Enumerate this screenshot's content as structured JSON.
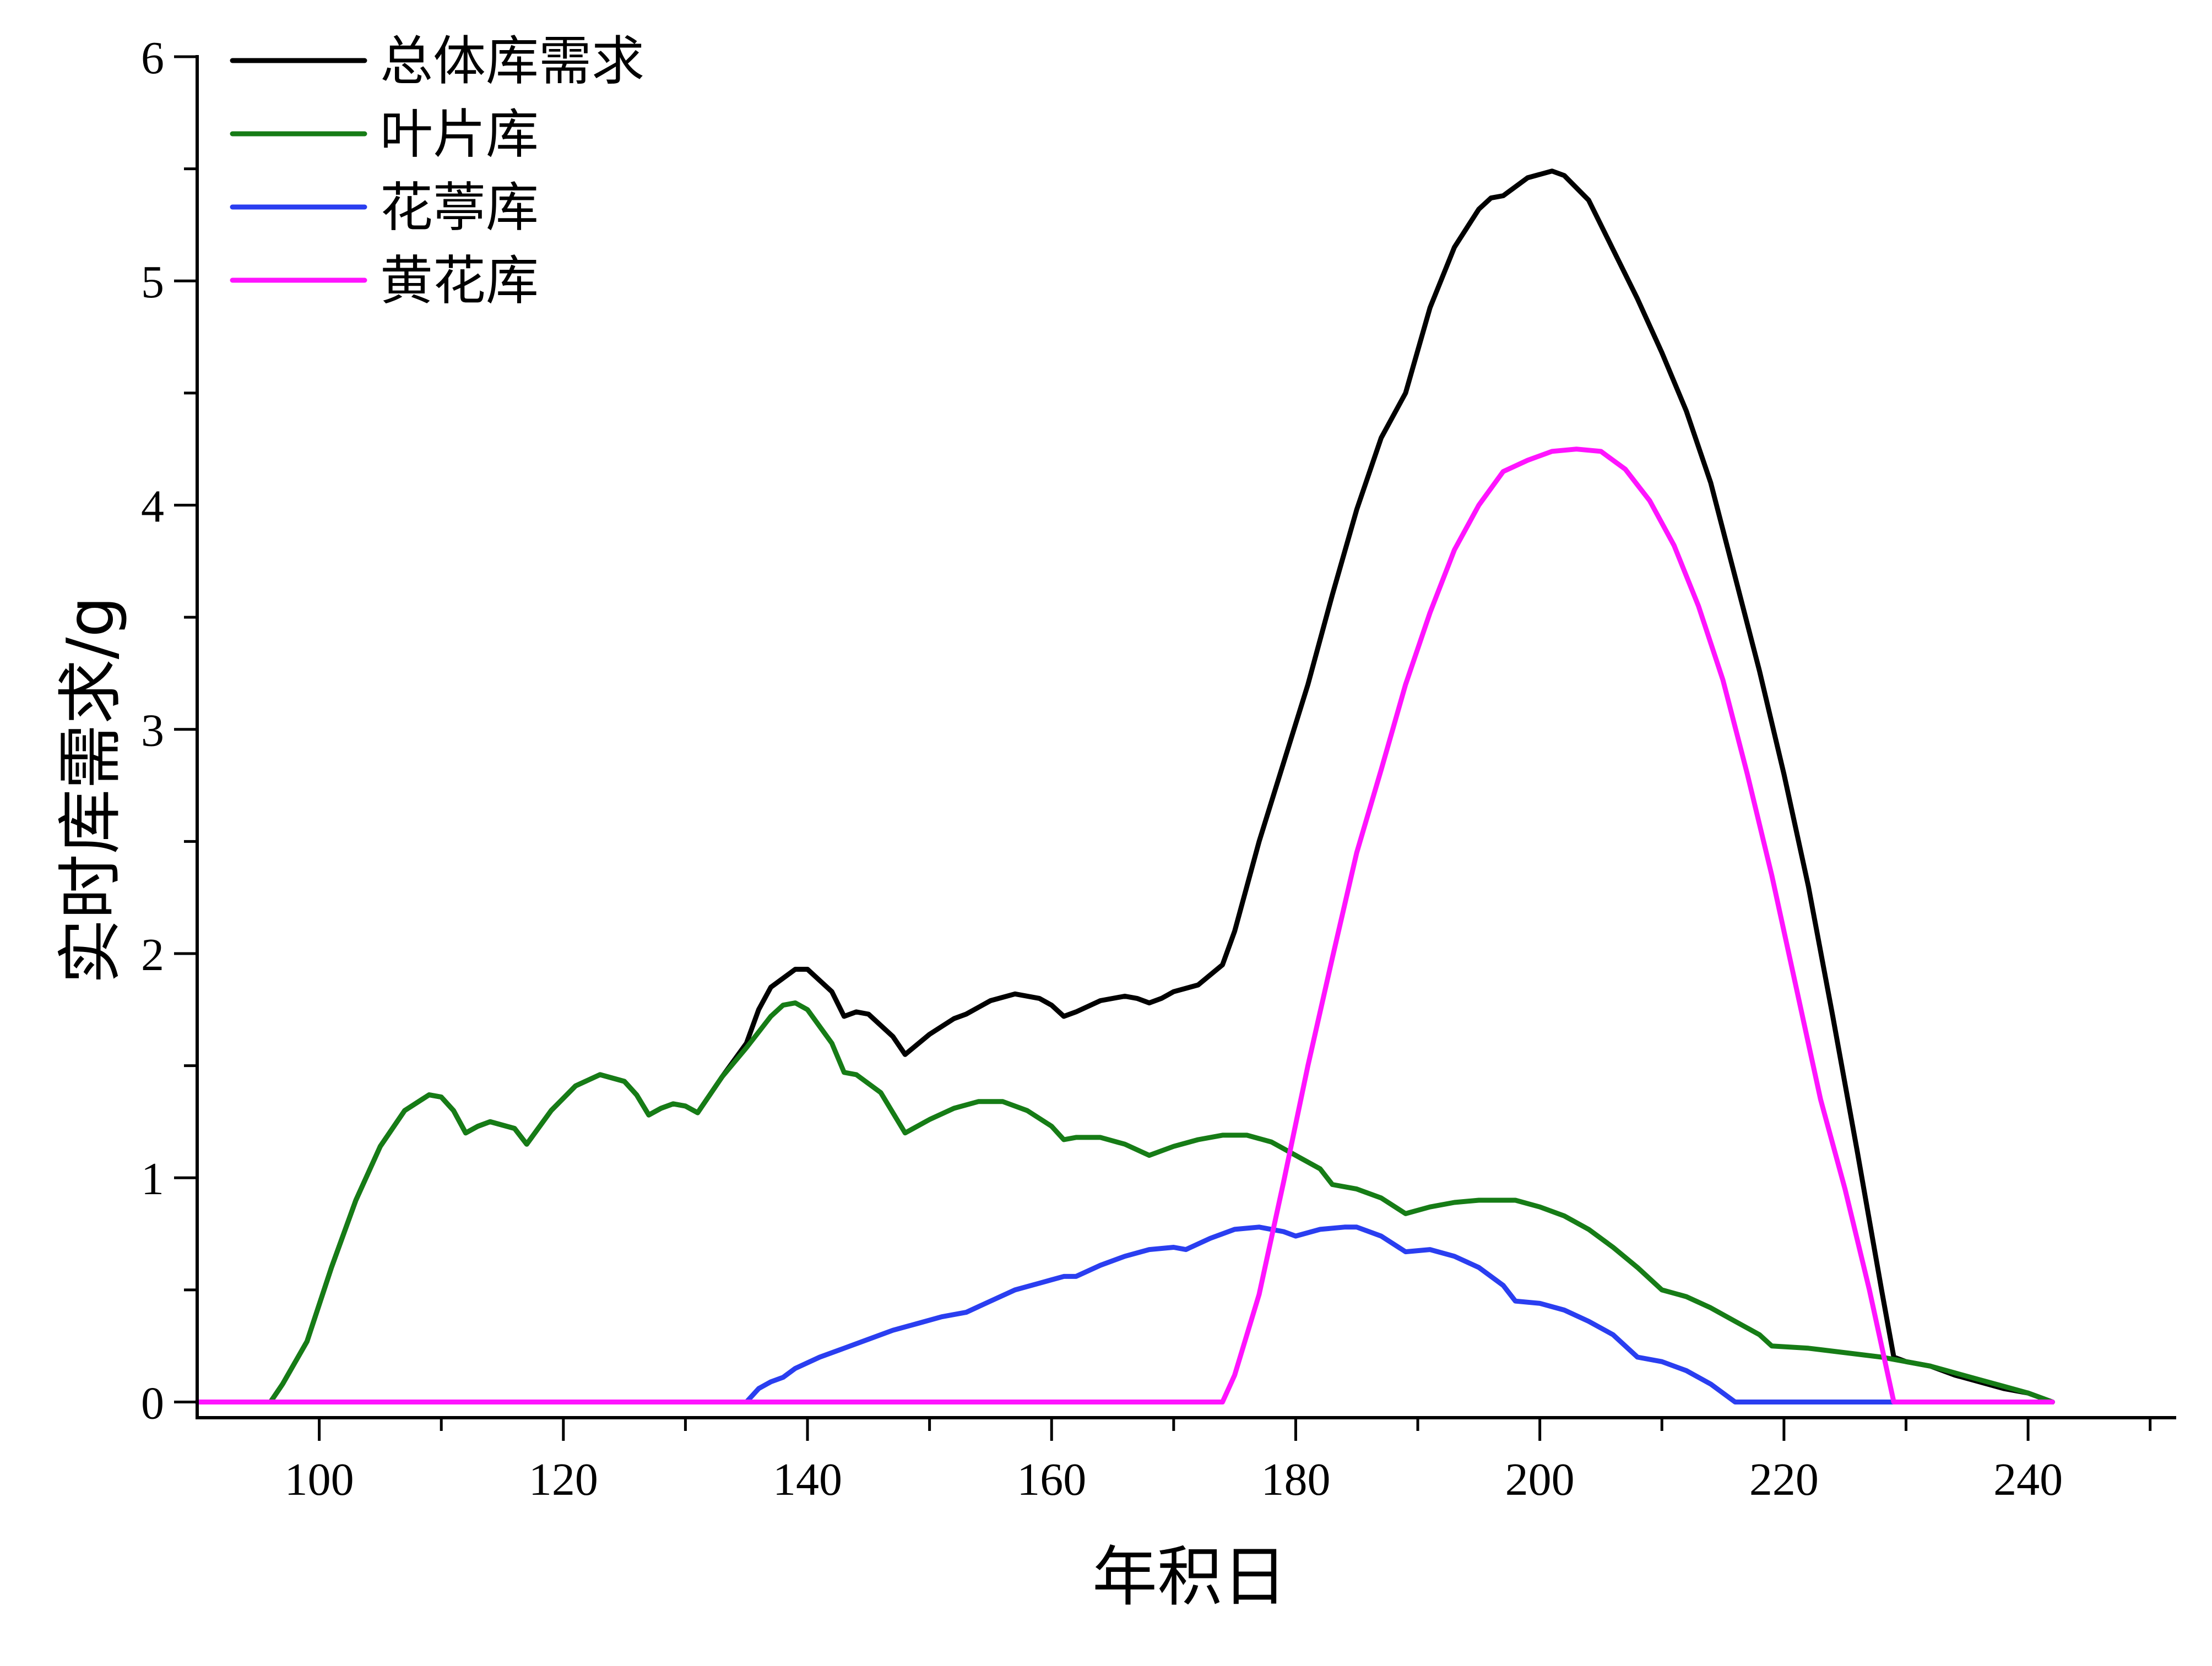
{
  "chart_data": {
    "type": "line",
    "xlabel": "年积日",
    "ylabel": "实时库需求/g",
    "xlim": [
      90,
      252
    ],
    "ylim": [
      -0.07,
      6
    ],
    "x_ticks": [
      100,
      120,
      140,
      160,
      180,
      200,
      220,
      240
    ],
    "y_ticks": [
      0,
      1,
      2,
      3,
      4,
      5,
      6
    ],
    "legend_position": "top-left",
    "series": [
      {
        "name": "总体库需求",
        "color": "#000000",
        "points": [
          [
            90,
            0
          ],
          [
            96,
            0
          ],
          [
            97,
            0.08
          ],
          [
            99,
            0.27
          ],
          [
            101,
            0.6
          ],
          [
            103,
            0.9
          ],
          [
            105,
            1.14
          ],
          [
            107,
            1.3
          ],
          [
            109,
            1.37
          ],
          [
            110,
            1.36
          ],
          [
            111,
            1.3
          ],
          [
            112,
            1.2
          ],
          [
            113,
            1.23
          ],
          [
            114,
            1.25
          ],
          [
            116,
            1.22
          ],
          [
            117,
            1.15
          ],
          [
            119,
            1.3
          ],
          [
            121,
            1.41
          ],
          [
            123,
            1.46
          ],
          [
            125,
            1.43
          ],
          [
            126,
            1.37
          ],
          [
            127,
            1.28
          ],
          [
            128,
            1.31
          ],
          [
            129,
            1.33
          ],
          [
            130,
            1.32
          ],
          [
            131,
            1.29
          ],
          [
            133,
            1.45
          ],
          [
            135,
            1.6
          ],
          [
            136,
            1.75
          ],
          [
            137,
            1.85
          ],
          [
            139,
            1.93
          ],
          [
            140,
            1.93
          ],
          [
            142,
            1.83
          ],
          [
            143,
            1.72
          ],
          [
            144,
            1.74
          ],
          [
            145,
            1.73
          ],
          [
            147,
            1.63
          ],
          [
            148,
            1.55
          ],
          [
            150,
            1.64
          ],
          [
            152,
            1.71
          ],
          [
            153,
            1.73
          ],
          [
            155,
            1.79
          ],
          [
            157,
            1.82
          ],
          [
            159,
            1.8
          ],
          [
            160,
            1.77
          ],
          [
            161,
            1.72
          ],
          [
            162,
            1.74
          ],
          [
            164,
            1.79
          ],
          [
            166,
            1.81
          ],
          [
            167,
            1.8
          ],
          [
            168,
            1.78
          ],
          [
            169,
            1.8
          ],
          [
            170,
            1.83
          ],
          [
            172,
            1.86
          ],
          [
            174,
            1.95
          ],
          [
            175,
            2.1
          ],
          [
            177,
            2.5
          ],
          [
            179,
            2.85
          ],
          [
            181,
            3.2
          ],
          [
            183,
            3.6
          ],
          [
            185,
            3.98
          ],
          [
            187,
            4.3
          ],
          [
            189,
            4.5
          ],
          [
            191,
            4.88
          ],
          [
            193,
            5.15
          ],
          [
            195,
            5.32
          ],
          [
            196,
            5.37
          ],
          [
            197,
            5.38
          ],
          [
            198,
            5.42
          ],
          [
            199,
            5.46
          ],
          [
            201,
            5.49
          ],
          [
            202,
            5.47
          ],
          [
            204,
            5.36
          ],
          [
            206,
            5.14
          ],
          [
            208,
            4.92
          ],
          [
            210,
            4.68
          ],
          [
            212,
            4.42
          ],
          [
            214,
            4.1
          ],
          [
            216,
            3.68
          ],
          [
            218,
            3.26
          ],
          [
            220,
            2.8
          ],
          [
            222,
            2.3
          ],
          [
            224,
            1.72
          ],
          [
            226,
            1.12
          ],
          [
            228,
            0.5
          ],
          [
            229,
            0.2
          ],
          [
            230,
            0.18
          ],
          [
            232,
            0.16
          ],
          [
            234,
            0.12
          ],
          [
            236,
            0.09
          ],
          [
            238,
            0.06
          ],
          [
            240,
            0.04
          ],
          [
            242,
            0
          ]
        ]
      },
      {
        "name": "叶片库",
        "color": "#167c16",
        "points": [
          [
            90,
            0
          ],
          [
            96,
            0
          ],
          [
            97,
            0.08
          ],
          [
            99,
            0.27
          ],
          [
            101,
            0.6
          ],
          [
            103,
            0.9
          ],
          [
            105,
            1.14
          ],
          [
            107,
            1.3
          ],
          [
            109,
            1.37
          ],
          [
            110,
            1.36
          ],
          [
            111,
            1.3
          ],
          [
            112,
            1.2
          ],
          [
            113,
            1.23
          ],
          [
            114,
            1.25
          ],
          [
            116,
            1.22
          ],
          [
            117,
            1.15
          ],
          [
            119,
            1.3
          ],
          [
            121,
            1.41
          ],
          [
            123,
            1.46
          ],
          [
            125,
            1.43
          ],
          [
            126,
            1.37
          ],
          [
            127,
            1.28
          ],
          [
            128,
            1.31
          ],
          [
            129,
            1.33
          ],
          [
            130,
            1.32
          ],
          [
            131,
            1.29
          ],
          [
            133,
            1.45
          ],
          [
            135,
            1.58
          ],
          [
            136,
            1.65
          ],
          [
            137,
            1.72
          ],
          [
            138,
            1.77
          ],
          [
            139,
            1.78
          ],
          [
            140,
            1.75
          ],
          [
            142,
            1.6
          ],
          [
            143,
            1.47
          ],
          [
            144,
            1.46
          ],
          [
            146,
            1.38
          ],
          [
            148,
            1.2
          ],
          [
            150,
            1.26
          ],
          [
            152,
            1.31
          ],
          [
            154,
            1.34
          ],
          [
            156,
            1.34
          ],
          [
            158,
            1.3
          ],
          [
            160,
            1.23
          ],
          [
            161,
            1.17
          ],
          [
            162,
            1.18
          ],
          [
            164,
            1.18
          ],
          [
            166,
            1.15
          ],
          [
            168,
            1.1
          ],
          [
            170,
            1.14
          ],
          [
            172,
            1.17
          ],
          [
            174,
            1.19
          ],
          [
            176,
            1.19
          ],
          [
            178,
            1.16
          ],
          [
            180,
            1.1
          ],
          [
            182,
            1.04
          ],
          [
            183,
            0.97
          ],
          [
            185,
            0.95
          ],
          [
            187,
            0.91
          ],
          [
            189,
            0.84
          ],
          [
            191,
            0.87
          ],
          [
            193,
            0.89
          ],
          [
            195,
            0.9
          ],
          [
            198,
            0.9
          ],
          [
            200,
            0.87
          ],
          [
            202,
            0.83
          ],
          [
            204,
            0.77
          ],
          [
            206,
            0.69
          ],
          [
            208,
            0.6
          ],
          [
            210,
            0.5
          ],
          [
            212,
            0.47
          ],
          [
            214,
            0.42
          ],
          [
            216,
            0.36
          ],
          [
            218,
            0.3
          ],
          [
            219,
            0.25
          ],
          [
            222,
            0.24
          ],
          [
            225,
            0.22
          ],
          [
            228,
            0.2
          ],
          [
            230,
            0.18
          ],
          [
            232,
            0.16
          ],
          [
            234,
            0.13
          ],
          [
            236,
            0.1
          ],
          [
            238,
            0.07
          ],
          [
            240,
            0.04
          ],
          [
            242,
            0
          ]
        ]
      },
      {
        "name": "花葶库",
        "color": "#2a3ef0",
        "points": [
          [
            90,
            0
          ],
          [
            135,
            0
          ],
          [
            136,
            0.06
          ],
          [
            137,
            0.09
          ],
          [
            138,
            0.11
          ],
          [
            139,
            0.15
          ],
          [
            141,
            0.2
          ],
          [
            143,
            0.24
          ],
          [
            145,
            0.28
          ],
          [
            147,
            0.32
          ],
          [
            149,
            0.35
          ],
          [
            151,
            0.38
          ],
          [
            153,
            0.4
          ],
          [
            155,
            0.45
          ],
          [
            157,
            0.5
          ],
          [
            159,
            0.53
          ],
          [
            161,
            0.56
          ],
          [
            162,
            0.56
          ],
          [
            164,
            0.61
          ],
          [
            166,
            0.65
          ],
          [
            168,
            0.68
          ],
          [
            170,
            0.69
          ],
          [
            171,
            0.68
          ],
          [
            173,
            0.73
          ],
          [
            175,
            0.77
          ],
          [
            177,
            0.78
          ],
          [
            178,
            0.77
          ],
          [
            179,
            0.76
          ],
          [
            180,
            0.74
          ],
          [
            182,
            0.77
          ],
          [
            184,
            0.78
          ],
          [
            185,
            0.78
          ],
          [
            187,
            0.74
          ],
          [
            189,
            0.67
          ],
          [
            191,
            0.68
          ],
          [
            193,
            0.65
          ],
          [
            195,
            0.6
          ],
          [
            197,
            0.52
          ],
          [
            198,
            0.45
          ],
          [
            200,
            0.44
          ],
          [
            202,
            0.41
          ],
          [
            204,
            0.36
          ],
          [
            206,
            0.3
          ],
          [
            208,
            0.2
          ],
          [
            210,
            0.18
          ],
          [
            212,
            0.14
          ],
          [
            214,
            0.08
          ],
          [
            216,
            0
          ],
          [
            229,
            0
          ]
        ]
      },
      {
        "name": "黄花库",
        "color": "#ff14ff",
        "points": [
          [
            90,
            0
          ],
          [
            174,
            0
          ],
          [
            175,
            0.12
          ],
          [
            177,
            0.48
          ],
          [
            179,
            0.98
          ],
          [
            181,
            1.5
          ],
          [
            183,
            1.98
          ],
          [
            185,
            2.45
          ],
          [
            187,
            2.82
          ],
          [
            189,
            3.2
          ],
          [
            191,
            3.52
          ],
          [
            193,
            3.8
          ],
          [
            195,
            4.0
          ],
          [
            197,
            4.15
          ],
          [
            199,
            4.2
          ],
          [
            201,
            4.24
          ],
          [
            203,
            4.25
          ],
          [
            205,
            4.24
          ],
          [
            207,
            4.16
          ],
          [
            209,
            4.02
          ],
          [
            211,
            3.82
          ],
          [
            213,
            3.55
          ],
          [
            215,
            3.22
          ],
          [
            217,
            2.8
          ],
          [
            219,
            2.35
          ],
          [
            221,
            1.85
          ],
          [
            223,
            1.35
          ],
          [
            225,
            0.95
          ],
          [
            227,
            0.5
          ],
          [
            229,
            0
          ],
          [
            242,
            0
          ]
        ]
      }
    ]
  }
}
